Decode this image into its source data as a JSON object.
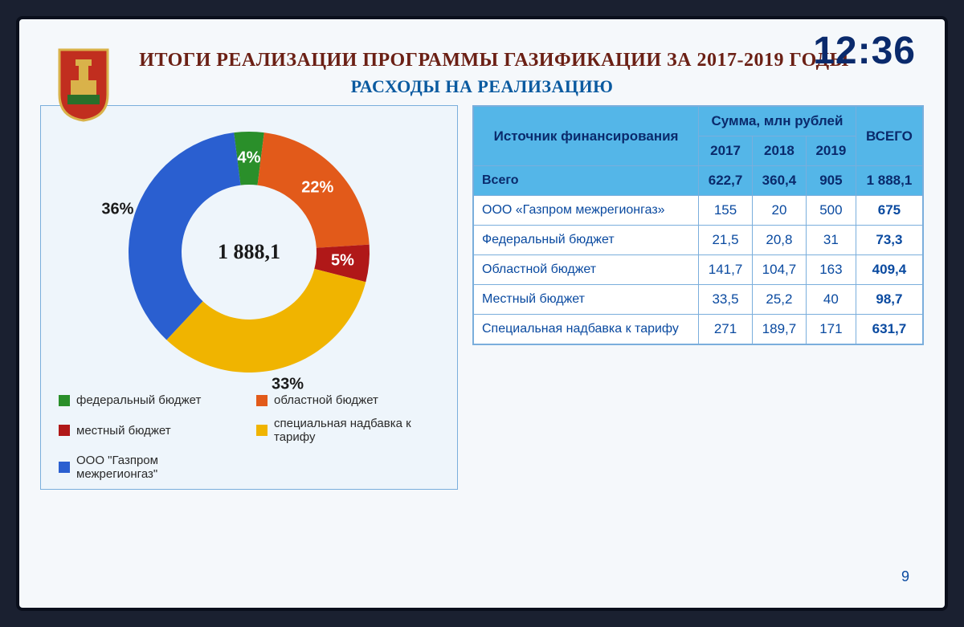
{
  "clock": "12:36",
  "page_number": "9",
  "title": "ИТОГИ РЕАЛИЗАЦИИ ПРОГРАММЫ ГАЗИФИКАЦИИ ЗА 2017-2019 ГОДЫ",
  "subtitle": "РАСХОДЫ НА РЕАЛИЗАЦИЮ",
  "emblem": {
    "shield_color": "#c12e1f",
    "border_color": "#d9b24a",
    "throne_color": "#2a6f2a"
  },
  "chart": {
    "type": "donut",
    "center_label": "1 888,1",
    "center_fontsize": 26,
    "inner_radius": 84,
    "outer_radius": 150,
    "background_color": "#eef5fb",
    "border_color": "#7aaedc",
    "label_fontsize": 20,
    "legend_fontsize": 15,
    "slices": [
      {
        "name": "федеральный бюджет",
        "percent": 4,
        "label": "4%",
        "color": "#2a8f2a",
        "label_color": "#ffffff",
        "label_at": "ring"
      },
      {
        "name": "областной бюджет",
        "percent": 22,
        "label": "22%",
        "color": "#e25a1a",
        "label_color": "#ffffff",
        "label_at": "ring"
      },
      {
        "name": "местный бюджет",
        "percent": 5,
        "label": "5%",
        "color": "#b01818",
        "label_color": "#ffffff",
        "label_at": "ring"
      },
      {
        "name": "специальная надбавка к тарифу",
        "percent": 33,
        "label": "33%",
        "color": "#f0b400",
        "label_color": "#1a1a1a",
        "label_at": "outside"
      },
      {
        "name": "ООО \"Газпром межрегионгаз\"",
        "percent": 36,
        "label": "36%",
        "color": "#2a5fd0",
        "label_color": "#1a1a1a",
        "label_at": "outside"
      }
    ]
  },
  "table": {
    "header_bg": "#54b6e8",
    "border_color": "#7aaedc",
    "text_color": "#0a4aa0",
    "col1_header": "Источник финансиро­вания",
    "sum_header": "Сумма, млн рублей",
    "years": [
      "2017",
      "2018",
      "2019"
    ],
    "total_header": "ВСЕГО",
    "total_row_label": "Всего",
    "total_row": [
      "622,7",
      "360,4",
      "905",
      "1 888,1"
    ],
    "rows": [
      {
        "label": "ООО «Газпром межрегионгаз»",
        "cells": [
          "155",
          "20",
          "500",
          "675"
        ]
      },
      {
        "label": "Федеральный бюджет",
        "cells": [
          "21,5",
          "20,8",
          "31",
          "73,3"
        ]
      },
      {
        "label": "Областной бюджет",
        "cells": [
          "141,7",
          "104,7",
          "163",
          "409,4"
        ]
      },
      {
        "label": "Местный бюджет",
        "cells": [
          "33,5",
          "25,2",
          "40",
          "98,7"
        ]
      },
      {
        "label": "Специальная надбавка к тарифу",
        "cells": [
          "271",
          "189,7",
          "171",
          "631,7"
        ]
      }
    ]
  }
}
